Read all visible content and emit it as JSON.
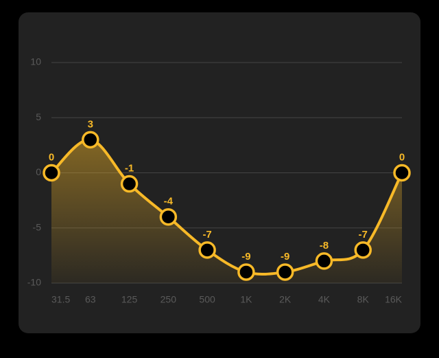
{
  "chart_data": {
    "type": "line",
    "categories": [
      "31.5",
      "63",
      "125",
      "250",
      "500",
      "1K",
      "2K",
      "4K",
      "8K",
      "16K"
    ],
    "values": [
      0,
      3,
      -1,
      -4,
      -7,
      -9,
      -9,
      -8,
      -7,
      0
    ],
    "color": "#f7b928",
    "ylim": [
      -10,
      10
    ],
    "yticks": [
      -10,
      -5,
      0,
      5,
      10
    ],
    "grid": true
  }
}
